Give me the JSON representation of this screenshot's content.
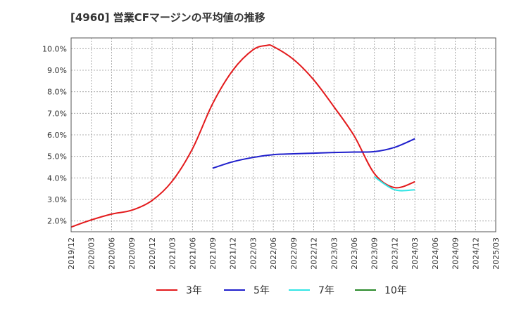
{
  "chart_data": {
    "type": "line",
    "title": "[4960]  営業CFマージンの平均値の推移",
    "xlabel": "",
    "ylabel": "",
    "ylim": [
      1.5,
      10.5
    ],
    "y_ticks": [
      "2.0%",
      "3.0%",
      "4.0%",
      "5.0%",
      "6.0%",
      "7.0%",
      "8.0%",
      "9.0%",
      "10.0%"
    ],
    "x_ticks": [
      "2019/12",
      "2020/03",
      "2020/06",
      "2020/09",
      "2020/12",
      "2021/03",
      "2021/06",
      "2021/09",
      "2021/12",
      "2022/03",
      "2022/06",
      "2022/09",
      "2022/12",
      "2023/03",
      "2023/06",
      "2023/09",
      "2023/12",
      "2024/03",
      "2024/06",
      "2024/09",
      "2024/12",
      "2025/03"
    ],
    "grid": true,
    "legend_placement": "bottom",
    "series": [
      {
        "name": "3年",
        "color": "#e31a1c",
        "points": [
          [
            "2019/12",
            1.72
          ],
          [
            "2020/03",
            2.05
          ],
          [
            "2020/06",
            2.32
          ],
          [
            "2020/09",
            2.5
          ],
          [
            "2020/12",
            2.95
          ],
          [
            "2021/03",
            3.85
          ],
          [
            "2021/06",
            5.35
          ],
          [
            "2021/09",
            7.45
          ],
          [
            "2021/12",
            9.0
          ],
          [
            "2022/03",
            9.95
          ],
          [
            "2022/05",
            10.15
          ],
          [
            "2022/06",
            10.1
          ],
          [
            "2022/09",
            9.5
          ],
          [
            "2022/12",
            8.55
          ],
          [
            "2023/03",
            7.3
          ],
          [
            "2023/06",
            5.95
          ],
          [
            "2023/09",
            4.2
          ],
          [
            "2023/12",
            3.55
          ],
          [
            "2024/03",
            3.82
          ]
        ]
      },
      {
        "name": "5年",
        "color": "#1f1fcc",
        "points": [
          [
            "2021/09",
            4.45
          ],
          [
            "2021/12",
            4.75
          ],
          [
            "2022/03",
            4.95
          ],
          [
            "2022/06",
            5.08
          ],
          [
            "2022/09",
            5.12
          ],
          [
            "2022/12",
            5.15
          ],
          [
            "2023/03",
            5.18
          ],
          [
            "2023/06",
            5.2
          ],
          [
            "2023/09",
            5.22
          ],
          [
            "2023/12",
            5.42
          ],
          [
            "2024/03",
            5.82
          ]
        ]
      },
      {
        "name": "7年",
        "color": "#33e5e5",
        "points": [
          [
            "2023/09",
            4.05
          ],
          [
            "2023/12",
            3.45
          ],
          [
            "2024/03",
            3.45
          ]
        ]
      },
      {
        "name": "10年",
        "color": "#2a8a2a",
        "points": []
      }
    ]
  }
}
